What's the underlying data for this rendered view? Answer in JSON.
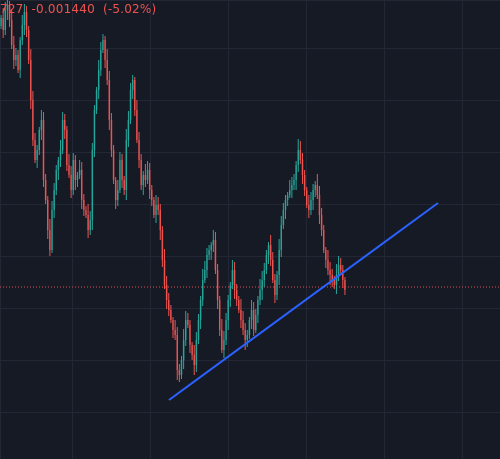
{
  "legend": {
    "close_fragment": "727",
    "change": "-0.001440",
    "change_pct": "(-5.02%)"
  },
  "colors": {
    "background": "#161a25",
    "grid": "#232735",
    "up": "#26a69a",
    "down": "#ef5350",
    "trendline": "#2962ff",
    "price_line": "#ef5350",
    "legend_text": "#ef5350"
  },
  "chart_data": {
    "type": "candlestick",
    "title": "",
    "xlabel": "",
    "ylabel": "",
    "grid": true,
    "ylim": [
      0,
      459
    ],
    "price_line": 287,
    "trendline": {
      "x1": 0.338,
      "y1": 400,
      "x2": 0.876,
      "y2": 203
    },
    "closes": [
      18,
      30,
      10,
      5,
      20,
      45,
      60,
      55,
      70,
      40,
      25,
      12,
      30,
      60,
      100,
      140,
      160,
      150,
      130,
      120,
      180,
      200,
      230,
      250,
      210,
      190,
      170,
      160,
      150,
      120,
      130,
      165,
      175,
      190,
      160,
      180,
      175,
      170,
      200,
      210,
      215,
      230,
      220,
      150,
      110,
      90,
      70,
      50,
      40,
      60,
      80,
      120,
      150,
      180,
      200,
      190,
      160,
      180,
      190,
      140,
      120,
      90,
      80,
      110,
      140,
      160,
      185,
      175,
      180,
      170,
      190,
      200,
      215,
      205,
      210,
      230,
      260,
      285,
      300,
      310,
      320,
      330,
      335,
      370,
      375,
      360,
      340,
      320,
      325,
      345,
      355,
      365,
      340,
      320,
      300,
      280,
      270,
      255,
      250,
      245,
      240,
      270,
      300,
      330,
      350,
      340,
      320,
      300,
      285,
      270,
      290,
      300,
      310,
      320,
      330,
      340,
      335,
      320,
      310,
      330,
      315,
      300,
      290,
      280,
      270,
      255,
      245,
      260,
      280,
      295,
      275,
      250,
      225,
      210,
      200,
      195,
      190,
      185,
      180,
      165,
      150,
      160,
      175,
      190,
      205,
      210,
      200,
      190,
      185,
      195,
      215,
      230,
      250,
      260,
      270,
      275,
      280,
      285,
      275,
      265,
      270,
      280,
      290
    ]
  }
}
